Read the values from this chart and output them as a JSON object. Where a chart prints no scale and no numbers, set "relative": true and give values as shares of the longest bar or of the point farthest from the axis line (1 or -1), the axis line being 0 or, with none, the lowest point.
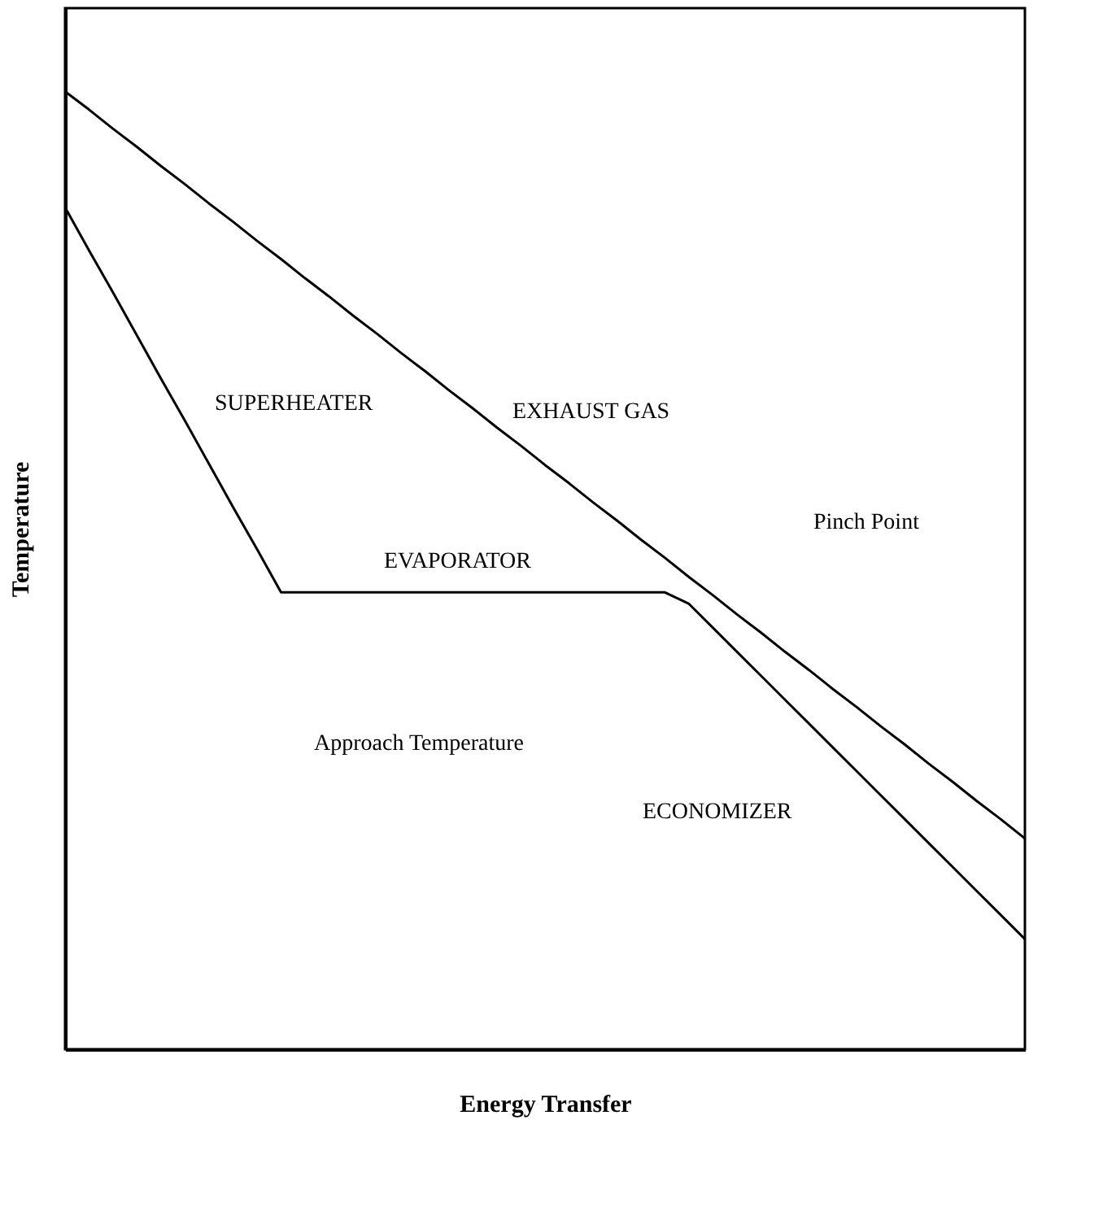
{
  "chart_data": {
    "type": "line",
    "relative": true,
    "xlabel": "Energy Transfer",
    "ylabel": "Temperature",
    "legend": false,
    "grid": false,
    "marker": "none",
    "line_style": "solid",
    "categories": [
      null,
      null,
      null,
      null,
      null,
      null,
      null,
      null,
      null,
      null,
      null,
      null,
      null,
      null,
      null,
      null,
      null,
      null,
      null,
      null,
      null,
      null,
      null,
      null,
      null,
      null,
      null,
      null,
      null,
      null,
      null,
      null,
      null,
      null,
      null,
      null,
      null,
      null,
      null,
      null,
      null
    ],
    "series": [
      {
        "color": "#000000",
        "values": [
          1.0,
          0.981,
          0.961,
          0.942,
          0.922,
          0.903,
          0.883,
          0.864,
          0.844,
          0.825,
          0.805,
          0.786,
          0.766,
          0.747,
          0.727,
          0.708,
          0.688,
          0.669,
          0.649,
          0.63,
          0.61,
          0.591,
          0.571,
          0.552,
          0.532,
          0.513,
          0.493,
          0.474,
          0.454,
          0.435,
          0.415,
          0.396,
          0.376,
          0.357,
          0.337,
          0.318,
          0.298,
          0.279,
          0.259,
          0.24,
          0.22
        ]
      },
      {
        "color": "#000000",
        "values": [
          0.879,
          0.834,
          0.79,
          0.745,
          0.7,
          0.656,
          0.611,
          0.566,
          0.522,
          0.477,
          0.477,
          0.477,
          0.477,
          0.477,
          0.477,
          0.477,
          0.477,
          0.477,
          0.477,
          0.477,
          0.477,
          0.477,
          0.477,
          0.477,
          0.477,
          0.477,
          0.465,
          0.44,
          0.415,
          0.39,
          0.365,
          0.34,
          0.315,
          0.29,
          0.265,
          0.24,
          0.215,
          0.19,
          0.165,
          0.14,
          0.115
        ]
      }
    ],
    "annotations": [
      "SUPERHEATER",
      "EXHAUST GAS",
      "EVAPORATOR",
      "Pinch Point",
      "Approach Temperature",
      "ECONOMIZER"
    ]
  }
}
